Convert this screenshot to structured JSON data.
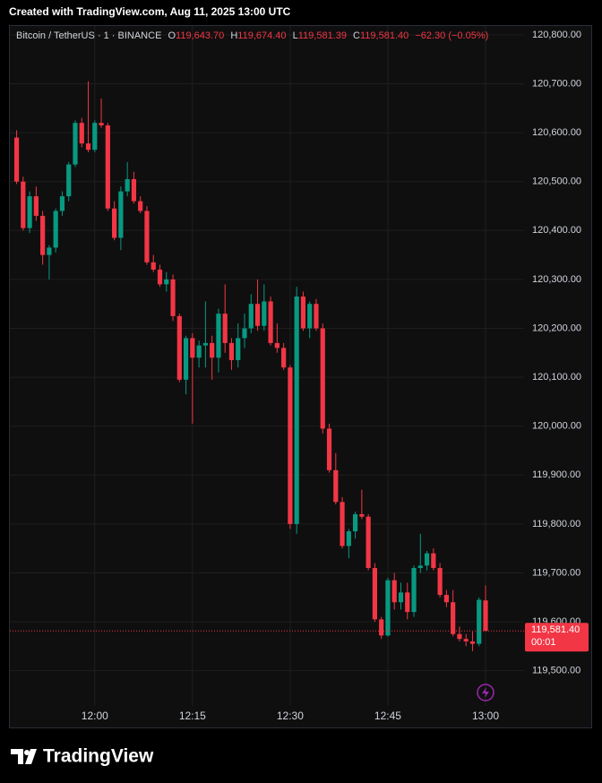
{
  "header": "Created with TradingView.com, Aug 11, 2025 13:00 UTC",
  "footer": {
    "brand": "TradingView"
  },
  "chart_data": {
    "type": "candlestick",
    "symbol": "Bitcoin / TetherUS · 1 · BINANCE",
    "legend": {
      "o_label": "O",
      "open": "119,643.70",
      "h_label": "H",
      "high": "119,674.40",
      "l_label": "L",
      "low": "119,581.39",
      "c_label": "C",
      "close": "119,581.40",
      "change": "−62.30 (−0.05%)"
    },
    "up_color": "#089981",
    "down_color": "#f23645",
    "x": [
      "11:48",
      "11:49",
      "11:50",
      "11:51",
      "11:52",
      "11:53",
      "11:54",
      "11:55",
      "11:56",
      "11:57",
      "11:58",
      "11:59",
      "12:00",
      "12:01",
      "12:02",
      "12:03",
      "12:04",
      "12:05",
      "12:06",
      "12:07",
      "12:08",
      "12:09",
      "12:10",
      "12:11",
      "12:12",
      "12:13",
      "12:14",
      "12:15",
      "12:16",
      "12:17",
      "12:18",
      "12:19",
      "12:20",
      "12:21",
      "12:22",
      "12:23",
      "12:24",
      "12:25",
      "12:26",
      "12:27",
      "12:28",
      "12:29",
      "12:30",
      "12:31",
      "12:32",
      "12:33",
      "12:34",
      "12:35",
      "12:36",
      "12:37",
      "12:38",
      "12:39",
      "12:40",
      "12:41",
      "12:42",
      "12:43",
      "12:44",
      "12:45",
      "12:46",
      "12:47",
      "12:48",
      "12:49",
      "12:50",
      "12:51",
      "12:52",
      "12:53",
      "12:54",
      "12:55",
      "12:56",
      "12:57",
      "12:58",
      "12:59",
      "13:00"
    ],
    "open": [
      120590,
      120500,
      120405,
      120470,
      120430,
      120350,
      120365,
      120440,
      120470,
      120535,
      120620,
      120578,
      120565,
      120620,
      120615,
      120445,
      120385,
      120480,
      120505,
      120460,
      120440,
      120335,
      120320,
      120290,
      120300,
      120225,
      120095,
      120180,
      120140,
      120165,
      120170,
      120140,
      120230,
      120170,
      120135,
      120180,
      120200,
      120250,
      120205,
      120255,
      120170,
      120160,
      120120,
      119800,
      120265,
      120200,
      120250,
      120200,
      119995,
      119910,
      119845,
      119755,
      119785,
      119820,
      119815,
      119710,
      119605,
      119572,
      119685,
      119640,
      119660,
      119620,
      119710,
      119715,
      119740,
      119710,
      119655,
      119640,
      119575,
      119565,
      119560,
      119555,
      119643.7
    ],
    "high": [
      120605,
      120510,
      120480,
      120490,
      120440,
      120370,
      120445,
      120480,
      120540,
      120625,
      120630,
      120705,
      120625,
      120670,
      120620,
      120460,
      120490,
      120540,
      120520,
      120470,
      120450,
      120350,
      120330,
      120315,
      120310,
      120230,
      120185,
      120190,
      120175,
      120255,
      120185,
      120240,
      120290,
      120180,
      120210,
      120230,
      120270,
      120300,
      120290,
      120265,
      120210,
      120170,
      120125,
      120285,
      120275,
      120255,
      120260,
      120210,
      120005,
      119945,
      119855,
      119790,
      119825,
      119870,
      119820,
      119720,
      119610,
      119690,
      119700,
      119680,
      119680,
      119715,
      119780,
      119745,
      119750,
      119720,
      119665,
      119665,
      119590,
      119575,
      119580,
      119650,
      119674.4
    ],
    "low": [
      120495,
      120400,
      120395,
      120420,
      120330,
      120300,
      120355,
      120430,
      120460,
      120530,
      120570,
      120560,
      120560,
      120610,
      120440,
      120380,
      120360,
      120470,
      120455,
      120435,
      120330,
      120315,
      120285,
      120275,
      120215,
      120090,
      120065,
      120005,
      120120,
      120120,
      120095,
      120110,
      120150,
      120115,
      120120,
      120160,
      120190,
      120195,
      120195,
      120165,
      120150,
      120115,
      119790,
      119780,
      120195,
      120180,
      120195,
      119985,
      119905,
      119840,
      119750,
      119730,
      119770,
      119810,
      119705,
      119600,
      119565,
      119570,
      119625,
      119625,
      119605,
      119610,
      119700,
      119705,
      119705,
      119650,
      119630,
      119570,
      119560,
      119550,
      119540,
      119550,
      119581.39
    ],
    "close": [
      120500,
      120405,
      120470,
      120430,
      120350,
      120365,
      120440,
      120470,
      120535,
      120620,
      120578,
      120565,
      120620,
      120615,
      120445,
      120385,
      120480,
      120505,
      120460,
      120440,
      120335,
      120320,
      120290,
      120300,
      120225,
      120095,
      120180,
      120140,
      120165,
      120170,
      120140,
      120230,
      120170,
      120135,
      120180,
      120200,
      120250,
      120205,
      120255,
      120170,
      120160,
      120120,
      119800,
      120265,
      120200,
      120250,
      120200,
      119995,
      119910,
      119845,
      119755,
      119785,
      119820,
      119815,
      119710,
      119605,
      119572,
      119685,
      119640,
      119660,
      119620,
      119710,
      119715,
      119740,
      119710,
      119655,
      119640,
      119575,
      119565,
      119560,
      119555,
      119645,
      119581.4
    ],
    "xticks": [
      "12:00",
      "12:15",
      "12:30",
      "12:45",
      "13:00"
    ],
    "ylim": [
      119384,
      120820
    ],
    "yticks": [
      {
        "value": 119500,
        "label": "119,500.00"
      },
      {
        "value": 119600,
        "label": "119,600.00"
      },
      {
        "value": 119700,
        "label": "119,700.00"
      },
      {
        "value": 119800,
        "label": "119,800.00"
      },
      {
        "value": 119900,
        "label": "119,900.00"
      },
      {
        "value": 120000,
        "label": "120,000.00"
      },
      {
        "value": 120100,
        "label": "120,100.00"
      },
      {
        "value": 120200,
        "label": "120,200.00"
      },
      {
        "value": 120300,
        "label": "120,300.00"
      },
      {
        "value": 120400,
        "label": "120,400.00"
      },
      {
        "value": 120500,
        "label": "120,500.00"
      },
      {
        "value": 120600,
        "label": "120,600.00"
      },
      {
        "value": 120700,
        "label": "120,700.00"
      },
      {
        "value": 120800,
        "label": "120,800.00"
      }
    ],
    "grid": true,
    "last_price": {
      "value": 119581.4,
      "label": "119,581.40",
      "countdown": "00:01"
    }
  }
}
